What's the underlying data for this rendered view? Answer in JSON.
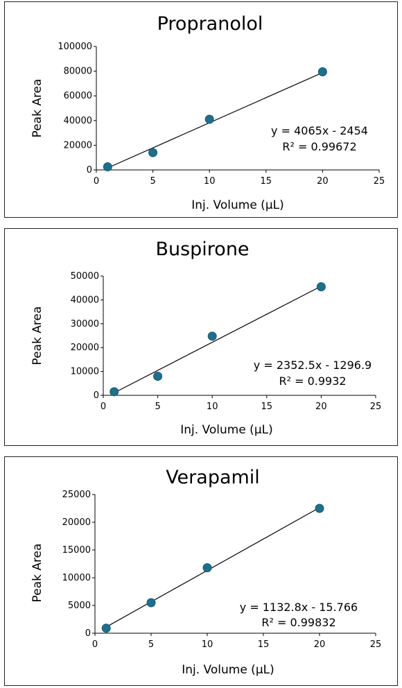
{
  "chart_data": [
    {
      "type": "scatter",
      "title": "Propranolol",
      "xlabel": "Inj. Volume (μL)",
      "ylabel": "Peak Area",
      "xlim": [
        0,
        25
      ],
      "ylim": [
        0,
        100000
      ],
      "xticks": [
        0,
        5,
        10,
        15,
        20,
        25
      ],
      "yticks": [
        0,
        20000,
        40000,
        60000,
        80000,
        100000
      ],
      "points": [
        {
          "x": 1,
          "y": 2500
        },
        {
          "x": 5,
          "y": 14000
        },
        {
          "x": 10,
          "y": 41000
        },
        {
          "x": 20,
          "y": 79500
        }
      ],
      "trendline": {
        "slope": 4065,
        "intercept": -2454,
        "x_range": [
          1,
          20
        ]
      },
      "equation": "y = 4065x - 2454",
      "r_squared": "R² = 0.99672"
    },
    {
      "type": "scatter",
      "title": "Buspirone",
      "xlabel": "Inj. Volume (μL)",
      "ylabel": "Peak Area",
      "xlim": [
        0,
        25
      ],
      "ylim": [
        0,
        50000
      ],
      "xticks": [
        0,
        5,
        10,
        15,
        20,
        25
      ],
      "yticks": [
        0,
        10000,
        20000,
        30000,
        40000,
        50000
      ],
      "points": [
        {
          "x": 1,
          "y": 1500
        },
        {
          "x": 5,
          "y": 8000
        },
        {
          "x": 10,
          "y": 24800
        },
        {
          "x": 20,
          "y": 45500
        }
      ],
      "trendline": {
        "slope": 2352.5,
        "intercept": -1296.9,
        "x_range": [
          1,
          20
        ]
      },
      "equation": "y = 2352.5x - 1296.9",
      "r_squared": "R² = 0.9932"
    },
    {
      "type": "scatter",
      "title": "Verapamil",
      "xlabel": "Inj. Volume (μL)",
      "ylabel": "Peak Area",
      "xlim": [
        0,
        25
      ],
      "ylim": [
        0,
        25000
      ],
      "xticks": [
        0,
        5,
        10,
        15,
        20,
        25
      ],
      "yticks": [
        0,
        5000,
        10000,
        15000,
        20000,
        25000
      ],
      "points": [
        {
          "x": 1,
          "y": 900
        },
        {
          "x": 5,
          "y": 5500
        },
        {
          "x": 10,
          "y": 11800
        },
        {
          "x": 20,
          "y": 22500
        }
      ],
      "trendline": {
        "slope": 1132.8,
        "intercept": -15.766,
        "x_range": [
          1,
          20
        ]
      },
      "equation": "y = 1132.8x - 15.766",
      "r_squared": "R² = 0.99832"
    }
  ]
}
